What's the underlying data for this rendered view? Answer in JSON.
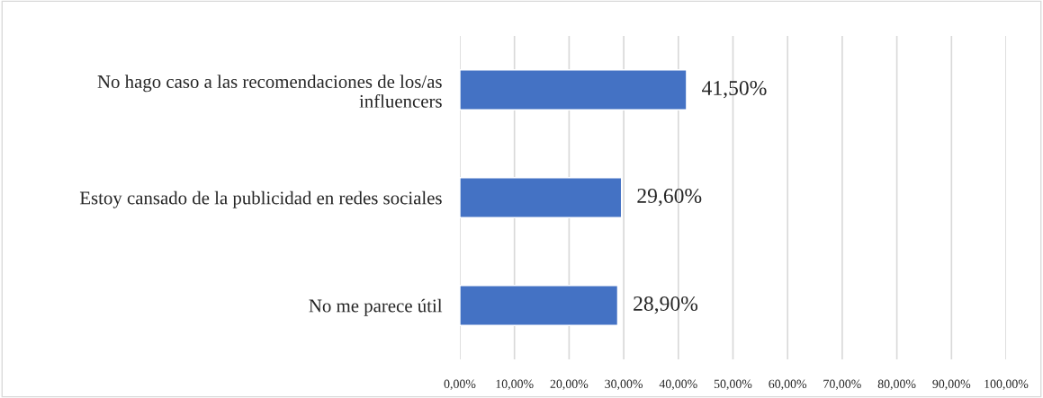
{
  "chart_data": {
    "type": "bar",
    "orientation": "horizontal",
    "categories": [
      "No hago caso a las recomendaciones de los/as\ninfluencers",
      "Estoy cansado de la publicidad en redes sociales",
      "No me parece útil"
    ],
    "values": [
      41.5,
      29.6,
      28.9
    ],
    "value_labels": [
      "41,50%",
      "29,60%",
      "28,90%"
    ],
    "color": "#4472c4",
    "xlim": [
      0,
      100
    ],
    "xticks": [
      {
        "value": 0,
        "label": "0,00%"
      },
      {
        "value": 10,
        "label": "10,00%"
      },
      {
        "value": 20,
        "label": "20,00%"
      },
      {
        "value": 30,
        "label": "30,00%"
      },
      {
        "value": 40,
        "label": "40,00%"
      },
      {
        "value": 50,
        "label": "50,00%"
      },
      {
        "value": 60,
        "label": "60,00%"
      },
      {
        "value": 70,
        "label": "70,00%"
      },
      {
        "value": 80,
        "label": "80,00%"
      },
      {
        "value": 90,
        "label": "90,00%"
      },
      {
        "value": 100,
        "label": "100,00%"
      }
    ],
    "grid": "x",
    "legend": false
  }
}
